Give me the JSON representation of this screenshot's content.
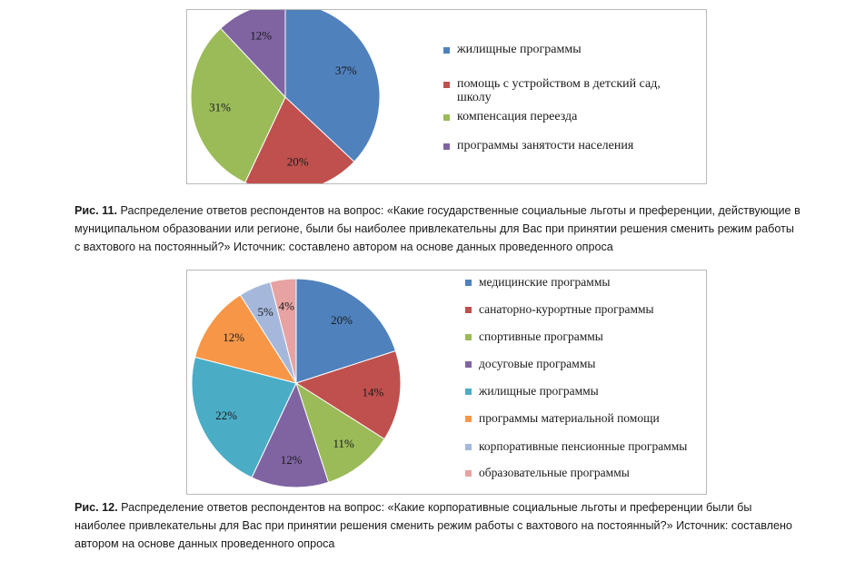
{
  "chart_data": [
    {
      "type": "pie",
      "categories": [
        "жилищные программы",
        "помощь с устройством в детский сад, школу",
        "компенсация переезда",
        "программы занятости населения"
      ],
      "values": [
        37,
        20,
        31,
        12
      ],
      "data_labels": [
        "37%",
        "20%",
        "31%",
        "12%"
      ],
      "colors": [
        "#4f81bd",
        "#c0504d",
        "#9bbb59",
        "#8064a2"
      ],
      "legend_position": "right"
    },
    {
      "type": "pie",
      "categories": [
        "медицинские программы",
        "санаторно-курортные программы",
        "спортивные программы",
        "досуговые программы",
        "жилищные программы",
        "программы материальной помощи",
        "корпоративные пенсионные программы",
        "образовательные программы"
      ],
      "values": [
        20,
        14,
        11,
        12,
        22,
        12,
        5,
        4
      ],
      "data_labels": [
        "20%",
        "14%",
        "11%",
        "12%",
        "22%",
        "12%",
        "5%",
        "4%"
      ],
      "colors": [
        "#4f81bd",
        "#c0504d",
        "#9bbb59",
        "#8064a2",
        "#4bacc6",
        "#f79646",
        "#a5b8dc",
        "#e6a3a2"
      ],
      "legend_position": "right"
    }
  ],
  "captions": [
    {
      "label": "Рис. 11.",
      "text": " Распределение ответов респондентов на вопрос: «Какие государственные социальные льготы и преференции, действующие в муниципальном образовании или регионе, были бы наиболее привлекательны для Вас при принятии решения сменить режим работы с вахтового на постоянный?» Источник: составлено автором на основе данных проведенного опроса"
    },
    {
      "label": "Рис. 12.",
      "text": " Распределение ответов респондентов на вопрос: «Какие корпоративные социальные льготы и преференции были бы наиболее привлекательны для Вас при принятии решения сменить режим работы с вахтового на постоянный?» Источник: составлено автором на основе данных проведенного опроса"
    }
  ]
}
